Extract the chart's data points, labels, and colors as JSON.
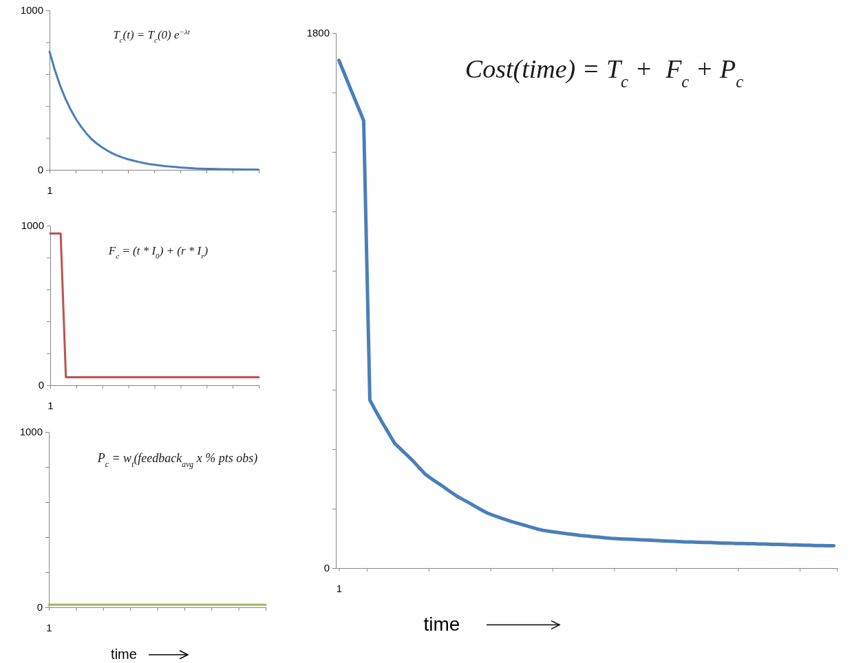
{
  "chart_data": [
    {
      "type": "line",
      "categories": [
        "1",
        null,
        null,
        null,
        null,
        null,
        null,
        null,
        null,
        null,
        null,
        null,
        null,
        null,
        null,
        null,
        null,
        null,
        null,
        null,
        null,
        null,
        null,
        null,
        null,
        null,
        null,
        null,
        null,
        null,
        null,
        null,
        null,
        null,
        null,
        null,
        null,
        null,
        null,
        null,
        null
      ],
      "series": [
        {
          "color": "#4a7ebb",
          "values": [
            741,
            627,
            530,
            449,
            380,
            321,
            272,
            230,
            194,
            166,
            142,
            122,
            104,
            89,
            77,
            67,
            58,
            50,
            43,
            37,
            32,
            28,
            24,
            21,
            18,
            15,
            13,
            11,
            9,
            8,
            7,
            6,
            5,
            4,
            4,
            3,
            3,
            2,
            2,
            2,
            1
          ]
        }
      ],
      "ylim": [
        0,
        1000
      ],
      "yticks": [
        0,
        {
          "value": 200,
          "label": null
        },
        {
          "value": 400,
          "label": null
        },
        {
          "value": 600,
          "label": null
        },
        {
          "value": 800,
          "label": null
        },
        1000
      ],
      "annotations": [
        "T$_{c}$(t) = T$_{c}$(0) e$^{−λt}$"
      ]
    },
    {
      "type": "line",
      "categories": [
        "1",
        null,
        null,
        null,
        null,
        null,
        null,
        null,
        null,
        null,
        null,
        null,
        null,
        null,
        null,
        null,
        null,
        null,
        null,
        null,
        null,
        null,
        null,
        null,
        null,
        null,
        null,
        null,
        null,
        null,
        null,
        null,
        null,
        null,
        null,
        null,
        null,
        null,
        null,
        null,
        null
      ],
      "series": [
        {
          "color": "#c0504d",
          "values": [
            950,
            950,
            950,
            50,
            50,
            50,
            50,
            50,
            50,
            50,
            50,
            50,
            50,
            50,
            50,
            50,
            50,
            50,
            50,
            50,
            50,
            50,
            50,
            50,
            50,
            50,
            50,
            50,
            50,
            50,
            50,
            50,
            50,
            50,
            50,
            50,
            50,
            50,
            50,
            50,
            50
          ]
        }
      ],
      "ylim": [
        0,
        1000
      ],
      "yticks": [
        0,
        {
          "value": 200,
          "label": null
        },
        {
          "value": 400,
          "label": null
        },
        {
          "value": 600,
          "label": null
        },
        {
          "value": 800,
          "label": null
        },
        1000
      ],
      "annotations": [
        "F$_{c}$ = (t * I$_{0}$) + (r * I$_{r}$)"
      ]
    },
    {
      "type": "line",
      "categories": [
        "1",
        null,
        null,
        null,
        null,
        null,
        null,
        null,
        null,
        null,
        null,
        null,
        null,
        null,
        null,
        null,
        null,
        null,
        null,
        null,
        null,
        null,
        null,
        null,
        null,
        null,
        null,
        null,
        null,
        null,
        null,
        null,
        null,
        null,
        null,
        null,
        null,
        null,
        null,
        null,
        null
      ],
      "series": [
        {
          "color": "#9bbb59",
          "values": [
            15,
            15,
            15,
            15,
            15,
            15,
            15,
            15,
            15,
            15,
            15,
            15,
            15,
            15,
            15,
            15,
            15,
            15,
            15,
            15,
            15,
            15,
            15,
            15,
            15,
            15,
            15,
            15,
            15,
            15,
            15,
            15,
            15,
            15,
            15,
            15,
            15,
            15,
            15,
            15,
            15
          ]
        }
      ],
      "ylim": [
        0,
        1000
      ],
      "yticks": [
        0,
        {
          "value": 200,
          "label": null
        },
        {
          "value": 400,
          "label": null
        },
        {
          "value": 600,
          "label": null
        },
        {
          "value": 800,
          "label": null
        },
        1000
      ],
      "xlabel": "time",
      "annotations": [
        "P$_{c}$ = w$_{t}$(feedback$_{avg}$ x % pts obs)"
      ]
    },
    {
      "type": "line",
      "categories": [
        "1",
        null,
        null,
        null,
        null,
        null,
        null,
        null,
        null,
        null,
        null,
        null,
        null,
        null,
        null,
        null,
        null,
        null,
        null,
        null,
        null,
        null,
        null,
        null,
        null,
        null,
        null,
        null,
        null,
        null,
        null,
        null,
        null,
        null,
        null,
        null,
        null,
        null,
        null,
        null,
        null,
        null,
        null,
        null,
        null,
        null,
        null,
        null,
        null,
        null,
        null,
        null,
        null,
        null,
        null,
        null,
        null,
        null,
        null,
        null,
        null,
        null,
        null,
        null,
        null,
        null,
        null,
        null,
        null,
        null,
        null,
        null,
        null,
        null,
        null,
        null,
        null,
        null,
        null,
        null,
        null
      ],
      "series": [
        {
          "color": "#4a7ebb",
          "values": [
            1708,
            1657,
            1606,
            1556,
            1505,
            565,
            527,
            490,
            455,
            420,
            400,
            380,
            360,
            337,
            315,
            300,
            286,
            272,
            257,
            243,
            231,
            220,
            208,
            196,
            185,
            177,
            170,
            163,
            156,
            150,
            144,
            138,
            132,
            127,
            124,
            121,
            118,
            115,
            113,
            110,
            108,
            106,
            104,
            102,
            100,
            99,
            98,
            97,
            96,
            95,
            94,
            93,
            92,
            91,
            90,
            89,
            88,
            88,
            87,
            86,
            86,
            85,
            84,
            84,
            83,
            83,
            82,
            82,
            81,
            81,
            80,
            80,
            79,
            78,
            78,
            77,
            77,
            76,
            76,
            75,
            75
          ]
        }
      ],
      "ylim": [
        0,
        1800
      ],
      "yticks": [
        0,
        {
          "value": 200,
          "label": null
        },
        {
          "value": 400,
          "label": null
        },
        {
          "value": 600,
          "label": null
        },
        {
          "value": 800,
          "label": null
        },
        {
          "value": 1000,
          "label": null
        },
        {
          "value": 1200,
          "label": null
        },
        {
          "value": 1400,
          "label": null
        },
        {
          "value": 1600,
          "label": null
        },
        1800
      ],
      "xlabel": "time",
      "annotations": [
        "Cost(time) = T$_{c}$ +  F$_{c}$ + P$_{c}$"
      ]
    }
  ]
}
